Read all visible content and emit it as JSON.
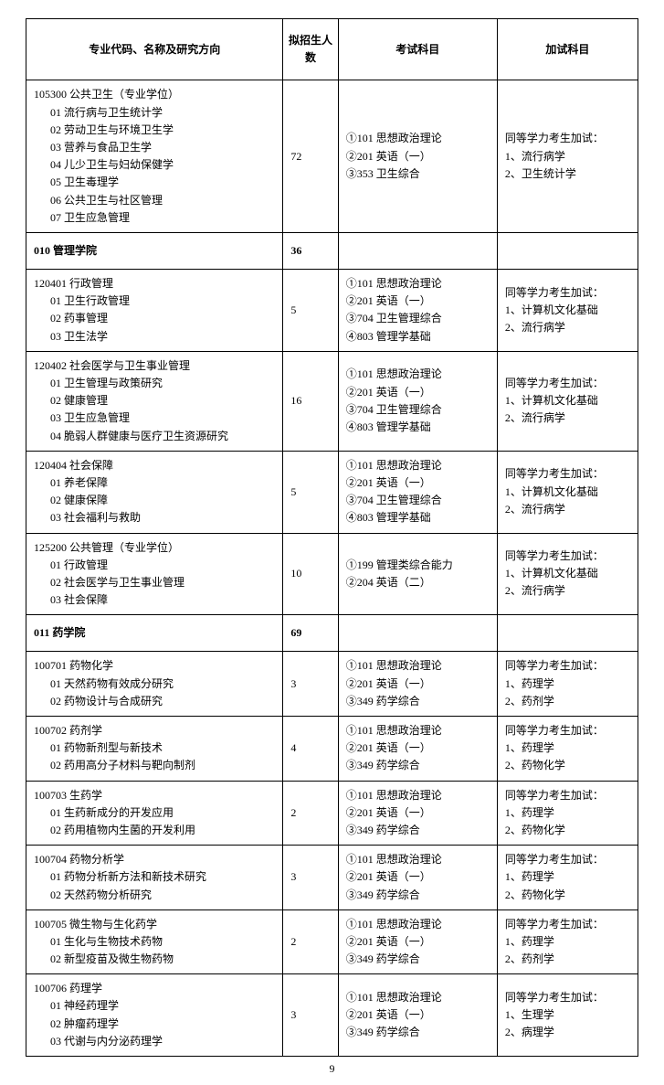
{
  "headers": {
    "c1": "专业代码、名称及研究方向",
    "c2": "拟招生人数",
    "c3": "考试科目",
    "c4": "加试科目"
  },
  "page_number": "9",
  "rows": [
    {
      "type": "data",
      "major_title": "105300 公共卫生（专业学位）",
      "directions": "01 流行病与卫生统计学\n02 劳动卫生与环境卫生学\n03 营养与食品卫生学\n04 儿少卫生与妇幼保健学\n05 卫生毒理学\n06 公共卫生与社区管理\n07 卫生应急管理",
      "count": "72",
      "subjects": "①101 思想政治理论\n②201 英语（一）\n③353 卫生综合",
      "extra": "同等学力考生加试：\n1、流行病学\n2、卫生统计学"
    },
    {
      "type": "section",
      "label": "010 管理学院",
      "count": "36"
    },
    {
      "type": "data",
      "major_title": "120401 行政管理",
      "directions": "01 卫生行政管理\n02 药事管理\n03 卫生法学",
      "count": "5",
      "subjects": "①101 思想政治理论\n②201 英语（一）\n③704 卫生管理综合\n④803 管理学基础",
      "extra": "同等学力考生加试：\n1、计算机文化基础\n2、流行病学"
    },
    {
      "type": "data",
      "major_title": "120402 社会医学与卫生事业管理",
      "directions": "01 卫生管理与政策研究\n02 健康管理\n03 卫生应急管理\n04 脆弱人群健康与医疗卫生资源研究",
      "count": "16",
      "subjects": "①101 思想政治理论\n②201 英语（一）\n③704 卫生管理综合\n④803 管理学基础",
      "extra": "同等学力考生加试：\n1、计算机文化基础\n2、流行病学"
    },
    {
      "type": "data",
      "major_title": "120404 社会保障",
      "directions": "01 养老保障\n02 健康保障\n03 社会福利与救助",
      "count": "5",
      "subjects": "①101 思想政治理论\n②201 英语（一）\n③704 卫生管理综合\n④803 管理学基础",
      "extra": "同等学力考生加试：\n1、计算机文化基础\n2、流行病学"
    },
    {
      "type": "data",
      "major_title": "125200 公共管理（专业学位）",
      "directions": "01 行政管理\n02 社会医学与卫生事业管理\n03 社会保障",
      "count": "10",
      "subjects": "①199 管理类综合能力\n②204 英语（二）",
      "extra": "同等学力考生加试：\n1、计算机文化基础\n2、流行病学"
    },
    {
      "type": "section",
      "label": "011 药学院",
      "count": "69"
    },
    {
      "type": "data",
      "major_title": "100701 药物化学",
      "directions": "01 天然药物有效成分研究\n02 药物设计与合成研究",
      "count": "3",
      "subjects": "①101 思想政治理论\n②201 英语（一）\n③349 药学综合",
      "extra": "同等学力考生加试：\n1、药理学\n2、药剂学"
    },
    {
      "type": "data",
      "major_title": "100702 药剂学",
      "directions": "01 药物新剂型与新技术\n02 药用高分子材料与靶向制剂",
      "count": "4",
      "subjects": "①101 思想政治理论\n②201 英语（一）\n③349 药学综合",
      "extra": "同等学力考生加试：\n1、药理学\n2、药物化学"
    },
    {
      "type": "data",
      "major_title": "100703 生药学",
      "directions": "01 生药新成分的开发应用\n02 药用植物内生菌的开发利用",
      "count": "2",
      "subjects": "①101 思想政治理论\n②201 英语（一）\n③349 药学综合",
      "extra": "同等学力考生加试：\n1、药理学\n2、药物化学"
    },
    {
      "type": "data",
      "major_title": "100704 药物分析学",
      "directions": "01 药物分析新方法和新技术研究\n02 天然药物分析研究",
      "count": "3",
      "subjects": "①101 思想政治理论\n②201 英语（一）\n③349 药学综合",
      "extra": "同等学力考生加试：\n1、药理学\n2、药物化学"
    },
    {
      "type": "data",
      "major_title": "100705 微生物与生化药学",
      "directions": "01 生化与生物技术药物\n02 新型疫苗及微生物药物",
      "count": "2",
      "subjects": "①101 思想政治理论\n②201 英语（一）\n③349 药学综合",
      "extra": "同等学力考生加试：\n1、药理学\n2、药剂学"
    },
    {
      "type": "data",
      "major_title": "100706 药理学",
      "directions": "01 神经药理学\n02 肿瘤药理学\n03 代谢与内分泌药理学",
      "count": "3",
      "subjects": "①101 思想政治理论\n②201 英语（一）\n③349 药学综合",
      "extra": "同等学力考生加试：\n1、生理学\n2、病理学"
    }
  ]
}
